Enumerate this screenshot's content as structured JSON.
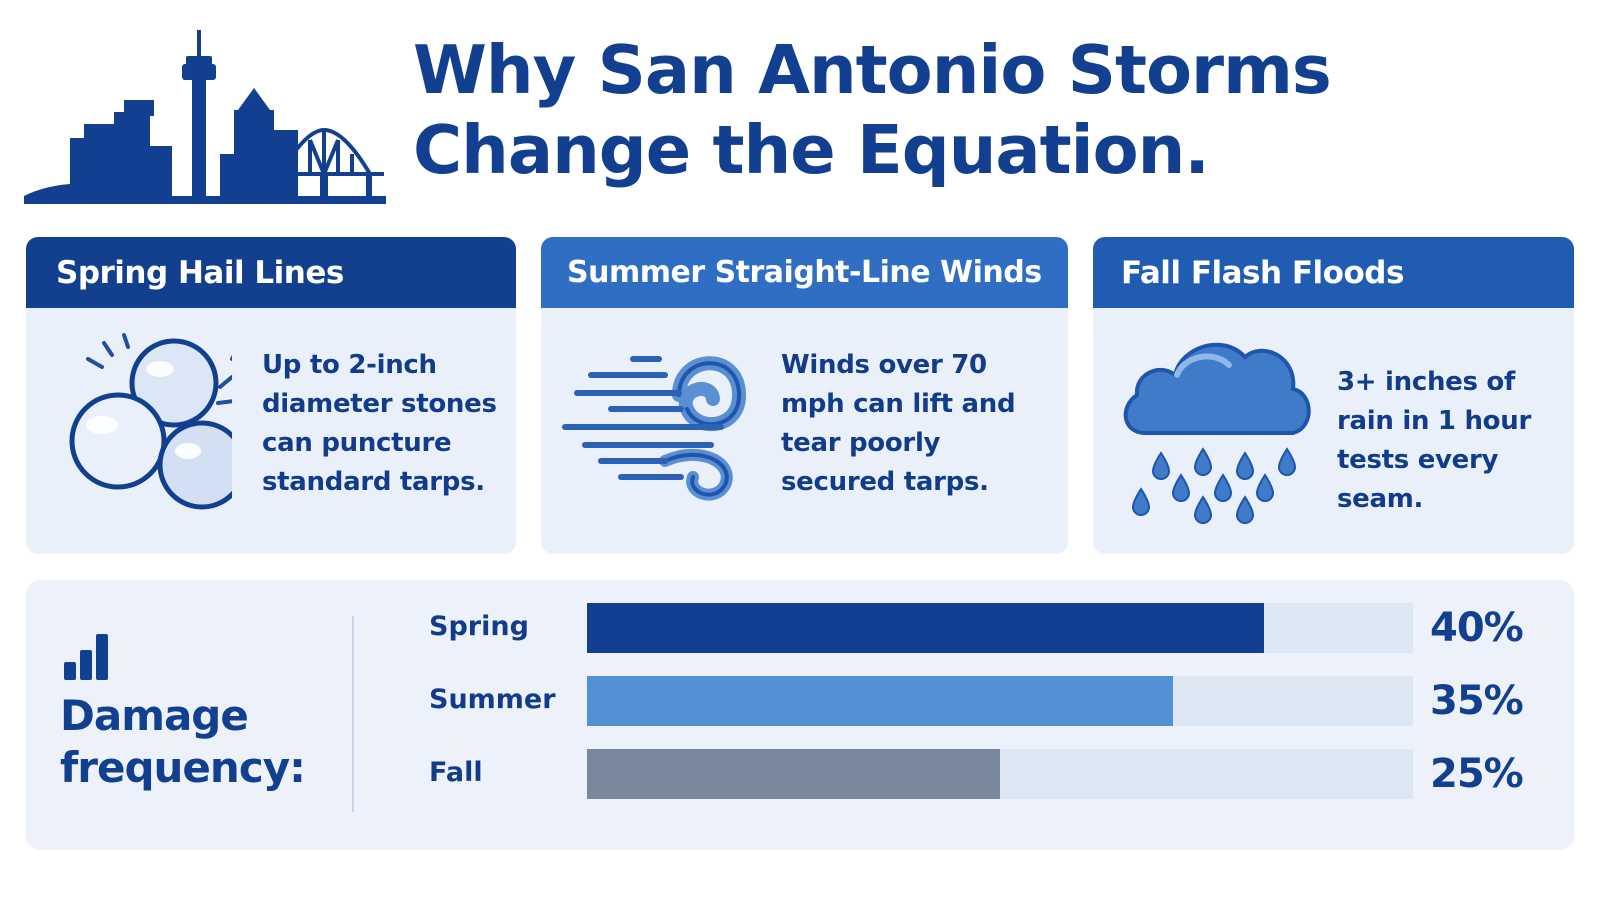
{
  "header": {
    "title_line1": "Why San Antonio Storms",
    "title_line2": "Change the Equation.",
    "icon": "city-skyline-icon"
  },
  "cards": [
    {
      "title": "Spring Hail Lines",
      "icon": "hailstones-icon",
      "text": "Up to 2-inch diameter stones can puncture standard tarps."
    },
    {
      "title": "Summer Straight-Line Winds",
      "icon": "wind-gust-icon",
      "text": "Winds over 70 mph can lift and tear poorly secured tarps."
    },
    {
      "title": "Fall Flash Floods",
      "icon": "rain-cloud-icon",
      "text": "3+ inches of rain in 1 hour tests every seam."
    }
  ],
  "frequency": {
    "title": "Damage frequency:",
    "icon": "bar-chart-icon",
    "rows": [
      {
        "label": "Spring",
        "value": "40%",
        "fraction": 0.82,
        "color": "#123f8f"
      },
      {
        "label": "Summer",
        "value": "35%",
        "fraction": 0.71,
        "color": "#5391d6"
      },
      {
        "label": "Fall",
        "value": "25%",
        "fraction": 0.5,
        "color": "#7a889e"
      }
    ]
  },
  "colors": {
    "navy": "#123f8f",
    "blue": "#2f6ec2",
    "card_bg": "#e9f0fa",
    "panel_bg": "#edf2fa"
  }
}
